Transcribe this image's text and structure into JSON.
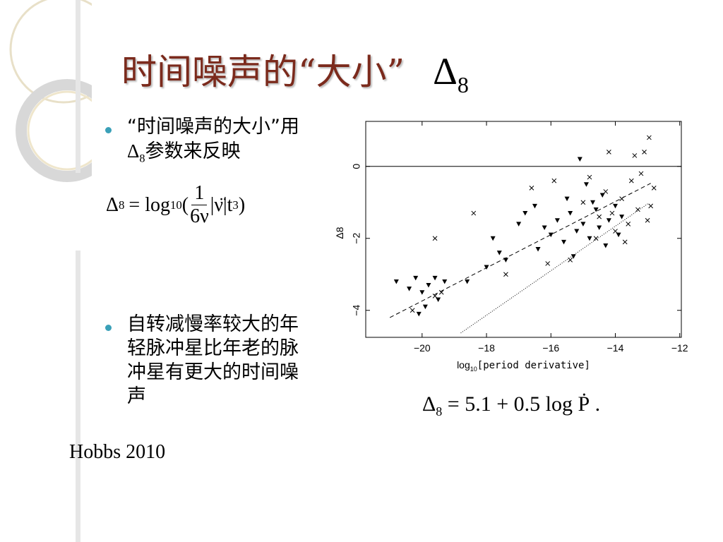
{
  "slide": {
    "title": {
      "text": "时间噪声的“大小”",
      "symbol": "Δ",
      "symbol_sub": "8"
    },
    "bullets": [
      {
        "before": "“时间噪声的大小”用",
        "symbol": "Δ",
        "symbol_sub": "8",
        "after": "参数来反映"
      },
      {
        "text": "自转减慢率较大的年轻脉冲星比年老的脉冲星有更大的时间噪声"
      }
    ],
    "formula": {
      "lhs": "Δ",
      "lhs_sub": "8",
      "eq": "= log",
      "log_sub": "10",
      "open": "(",
      "num": "1",
      "den": "6ν",
      "rest": "|ν̈|t",
      "rest_sup": "3",
      "close": ")"
    },
    "fit_equation": {
      "lhs": "Δ",
      "lhs_sub": "8",
      "rhs": "= 5.1 + 0.5 log Ṗ ."
    },
    "citation": "Hobbs 2010"
  },
  "chart_data": {
    "type": "scatter",
    "xlabel": {
      "text": "log",
      "sub": "10",
      "rest": "[period derivative]"
    },
    "ylabel": "Δ8",
    "xlim": [
      -21.75,
      -11.95
    ],
    "ylim": [
      -4.75,
      1.25
    ],
    "xticks": [
      {
        "value": -20,
        "label": "−20"
      },
      {
        "value": -18,
        "label": "−18"
      },
      {
        "value": -16,
        "label": "−16"
      },
      {
        "value": -14,
        "label": "−14"
      },
      {
        "value": -12,
        "label": "−12"
      }
    ],
    "yticks": [
      0,
      {
        "value": -2,
        "label": "−2"
      },
      {
        "value": -4,
        "label": "−4"
      }
    ],
    "zero_line": true,
    "series": [
      {
        "marker": "triangle",
        "color": "#000000",
        "x": [
          -20.8,
          -20.4,
          -20.2,
          -20.0,
          -19.8,
          -19.6,
          -19.9,
          -20.1,
          -19.3,
          -18.0,
          -17.6,
          -17.8,
          -17.0,
          -16.8,
          -16.5,
          -16.2,
          -16.0,
          -15.8,
          -15.6,
          -15.4,
          -15.2,
          -15.0,
          -14.9,
          -14.8,
          -14.6,
          -14.5,
          -14.4,
          -14.3,
          -14.2,
          -14.0,
          -13.9,
          -13.8,
          -15.1,
          -14.7,
          -15.3,
          -16.4,
          -17.4,
          -18.6,
          -19.5,
          -15.5
        ],
        "y": [
          -3.2,
          -3.4,
          -3.1,
          -3.5,
          -3.3,
          -3.1,
          -3.9,
          -4.1,
          -3.2,
          -2.8,
          -2.4,
          -2.0,
          -1.6,
          -1.3,
          -1.1,
          -1.7,
          -1.9,
          -1.5,
          -2.1,
          -1.3,
          -1.8,
          -1.6,
          -0.5,
          -2.0,
          -1.2,
          -1.7,
          -0.8,
          -2.2,
          -1.5,
          -1.1,
          -1.9,
          -1.4,
          0.2,
          -1.0,
          -2.5,
          -2.3,
          -2.6,
          -3.2,
          -3.7,
          -0.9
        ]
      },
      {
        "marker": "cross",
        "color": "#000000",
        "x": [
          -20.3,
          -19.6,
          -19.4,
          -18.4,
          -19.6,
          -17.4,
          -16.6,
          -15.9,
          -15.4,
          -14.8,
          -14.6,
          -14.3,
          -14.1,
          -14.0,
          -13.8,
          -13.6,
          -13.5,
          -13.3,
          -13.2,
          -13.0,
          -13.1,
          -12.8,
          -12.9,
          -13.4,
          -14.2,
          -12.95,
          -13.7,
          -14.5,
          -15.0,
          -16.1
        ],
        "y": [
          -4.0,
          -3.6,
          -3.5,
          -1.3,
          -2.0,
          -3.0,
          -0.6,
          -0.4,
          -2.6,
          -0.3,
          -2.0,
          -0.7,
          -1.3,
          -1.8,
          -0.9,
          -1.6,
          -0.4,
          -1.2,
          -0.2,
          -1.5,
          0.4,
          -0.6,
          -1.1,
          0.3,
          0.4,
          0.8,
          -2.1,
          -1.4,
          -1.0,
          -2.7
        ]
      }
    ],
    "lines": [
      {
        "style": "dashed",
        "x": [
          -21.0,
          -12.9
        ],
        "y": [
          -4.2,
          -0.47
        ]
      },
      {
        "style": "dotted",
        "x": [
          -18.8,
          -12.96
        ],
        "y": [
          -4.63,
          -1.02
        ]
      }
    ]
  }
}
